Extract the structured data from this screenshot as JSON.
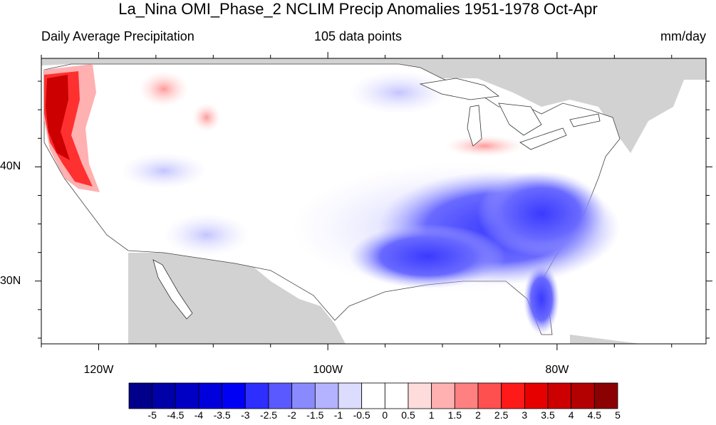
{
  "title": "La_Nina OMI_Phase_2 NCLIM Precip Anomalies 1951-1978 Oct-Apr",
  "left_label": "Daily Average Precipitation",
  "center_label": "105 data points",
  "right_label": "mm/day",
  "axes": {
    "lon_ticks": [
      {
        "value": -120,
        "label": "120W"
      },
      {
        "value": -100,
        "label": "100W"
      },
      {
        "value": -80,
        "label": "80W"
      }
    ],
    "lat_ticks": [
      {
        "value": 40,
        "label": "40N"
      },
      {
        "value": 30,
        "label": "30N"
      }
    ],
    "lon_range": [
      -125,
      -67
    ],
    "lat_range": [
      24.5,
      49.5
    ]
  },
  "colorbar": {
    "labels": [
      "-5",
      "-4.5",
      "-4",
      "-3.5",
      "-3",
      "-2.5",
      "-2",
      "-1.5",
      "-1",
      "-0.5",
      "0",
      "0.5",
      "1",
      "1.5",
      "2",
      "2.5",
      "3",
      "3.5",
      "4",
      "4.5",
      "5"
    ],
    "colors": [
      "#00008b",
      "#0000a8",
      "#0000c4",
      "#0000dc",
      "#0000f5",
      "#2e2eff",
      "#5959ff",
      "#8a8aff",
      "#b3b3ff",
      "#dcdcff",
      "#ffffff",
      "#ffffff",
      "#ffdcdc",
      "#ffb0b0",
      "#ff8080",
      "#ff5050",
      "#ff1a1a",
      "#e60000",
      "#cc0000",
      "#b30000",
      "#8b0000"
    ]
  },
  "colors": {
    "land_missing": "#d2d2d2",
    "ocean": "#ffffff"
  }
}
